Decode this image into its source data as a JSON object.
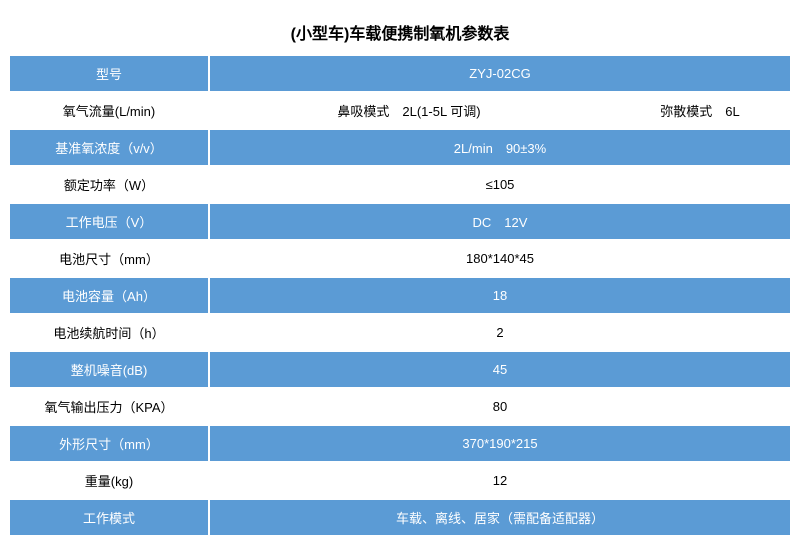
{
  "title": "(小型车)车载便携制氧机参数表",
  "colors": {
    "blue": "#5b9bd5",
    "white": "#ffffff",
    "black": "#000000"
  },
  "rows": [
    {
      "label": "型号",
      "value": "ZYJ-02CG",
      "style": "blue"
    },
    {
      "label": "氧气流量(L/min)",
      "split": true,
      "value_left": "鼻吸模式　2L(1-5L 可调)",
      "value_right": "弥散模式　6L",
      "style": "white"
    },
    {
      "label": "基准氧浓度（v/v）",
      "value": "2L/min　90±3%",
      "style": "blue"
    },
    {
      "label": "额定功率（W）",
      "value": "≤105",
      "style": "white"
    },
    {
      "label": "工作电压（V）",
      "value": "DC　12V",
      "style": "blue"
    },
    {
      "label": "电池尺寸（mm）",
      "value": "180*140*45",
      "style": "white"
    },
    {
      "label": "电池容量（Ah）",
      "value": "18",
      "style": "blue"
    },
    {
      "label": "电池续航时间（h）",
      "value": "2",
      "style": "white"
    },
    {
      "label": "整机噪音(dB)",
      "value": "45",
      "style": "blue"
    },
    {
      "label": "氧气输出压力（KPA）",
      "value": "80",
      "style": "white"
    },
    {
      "label": "外形尺寸（mm）",
      "value": "370*190*215",
      "style": "blue"
    },
    {
      "label": "重量(kg)",
      "value": "12",
      "style": "white"
    },
    {
      "label": "工作模式",
      "value": "车载、离线、居家（需配备适配器）",
      "style": "blue"
    }
  ]
}
